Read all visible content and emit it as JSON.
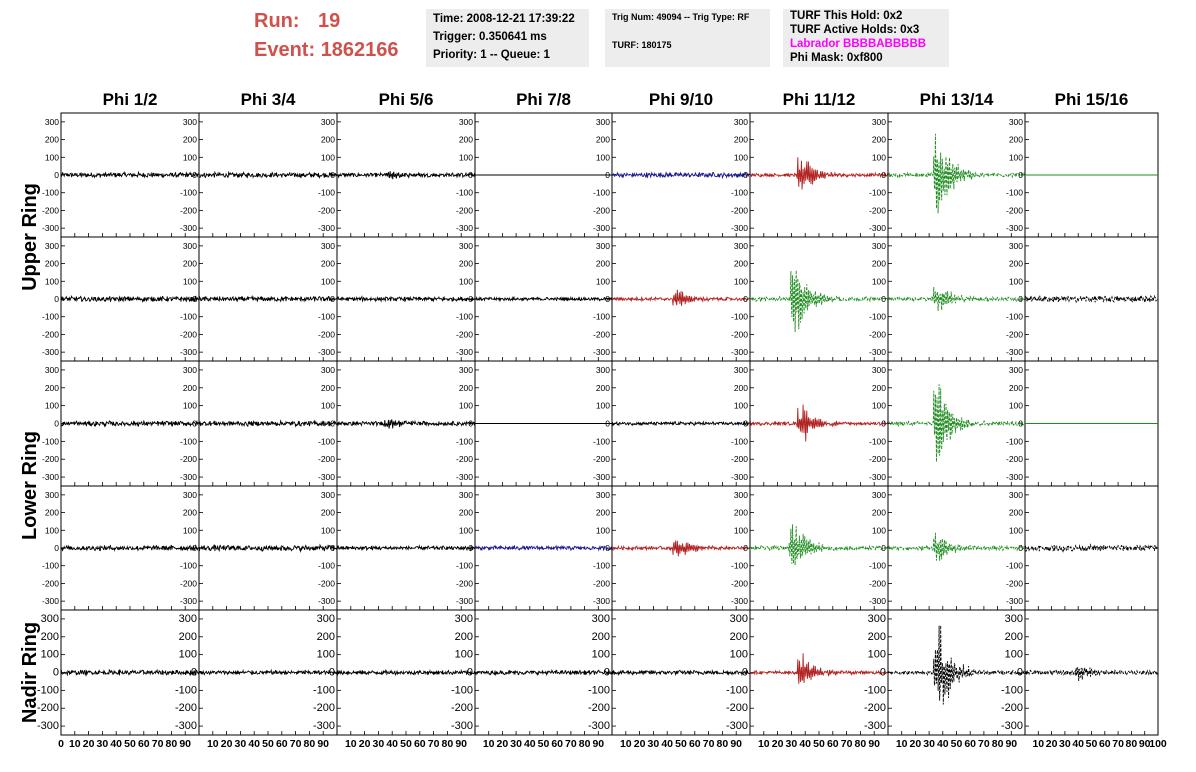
{
  "header": {
    "run_label": "Run:",
    "run_value": "19",
    "event_label": "Event:",
    "event_value": "1862166",
    "time_line": "Time: 2008-12-21 17:39:22",
    "trigger_line": "Trigger: 0.350641 ms",
    "priority_line": "Priority: 1 -- Queue: 1",
    "trig_line": "Trig Num: 49094 -- Trig Type: RF",
    "turf_line": "TURF: 180175",
    "turf_hold_line": "TURF This Hold: 0x2",
    "turf_active_line": "TURF Active Holds: 0x3",
    "labrador_line": "Labrador BBBBABBBBB",
    "phi_mask_line": "Phi Mask: 0xf800"
  },
  "colors": {
    "header_red": "#d0504c",
    "labrador_magenta": "#ff00ff",
    "info_box_bg": "#ededed",
    "trace_black": "#000000",
    "trace_blue": "#1a1a8c",
    "trace_red": "#b22222",
    "trace_green": "#1e8c1e"
  },
  "chart_data": {
    "type": "line",
    "columns": [
      "Phi 1/2",
      "Phi 3/4",
      "Phi 5/6",
      "Phi 7/8",
      "Phi 9/10",
      "Phi 11/12",
      "Phi 13/14",
      "Phi 15/16"
    ],
    "rows": [
      "Upper Ring",
      "Lower Ring",
      "Nadir Ring"
    ],
    "xlim": [
      0,
      100
    ],
    "ylim": [
      -350,
      350
    ],
    "x_ticks": [
      0,
      10,
      20,
      30,
      40,
      50,
      60,
      70,
      80,
      90,
      100
    ],
    "x_tick_labels": [
      "0",
      "10",
      "20",
      "30",
      "40",
      "50",
      "60",
      "70",
      "80",
      "90",
      "100"
    ],
    "y_ticks": [
      300,
      200,
      100,
      0,
      -100,
      -200,
      -300
    ],
    "y_tick_labels": [
      "300",
      "200",
      "100",
      "0",
      "-100",
      "-200",
      "-300"
    ],
    "panels": [
      [
        {
          "color": "black",
          "style": "solid",
          "amp": 12,
          "peak": 0
        },
        {
          "color": "black",
          "style": "solid",
          "amp": 12,
          "peak": 0
        },
        {
          "color": "black",
          "style": "solid",
          "amp": 10,
          "peak": 30,
          "peak_x": 38
        },
        {
          "color": "black",
          "style": "flat",
          "amp": 0,
          "peak": 0
        },
        {
          "color": "blue",
          "style": "solid",
          "amp": 12,
          "peak": 0
        },
        {
          "color": "red",
          "style": "solid",
          "amp": 8,
          "peak": 140,
          "peak_x": 38
        },
        {
          "color": "green",
          "style": "dashed",
          "amp": 10,
          "peak": 340,
          "peak_x": 37
        },
        {
          "color": "green",
          "style": "flat",
          "amp": 0,
          "peak": 0
        }
      ],
      [
        {
          "color": "black",
          "style": "solid",
          "amp": 12,
          "peak": 0
        },
        {
          "color": "black",
          "style": "solid",
          "amp": 12,
          "peak": 0
        },
        {
          "color": "black",
          "style": "solid",
          "amp": 10,
          "peak": 0
        },
        {
          "color": "black",
          "style": "solid",
          "amp": 8,
          "peak": 0
        },
        {
          "color": "red",
          "style": "solid",
          "amp": 8,
          "peak": 70,
          "peak_x": 48
        },
        {
          "color": "green",
          "style": "dashed",
          "amp": 10,
          "peak": 260,
          "peak_x": 33
        },
        {
          "color": "green",
          "style": "dashed",
          "amp": 10,
          "peak": 120,
          "peak_x": 37
        },
        {
          "color": "black",
          "style": "dashed",
          "amp": 15,
          "peak": 0
        }
      ],
      [
        {
          "color": "black",
          "style": "solid",
          "amp": 12,
          "peak": 0
        },
        {
          "color": "black",
          "style": "solid",
          "amp": 12,
          "peak": 0
        },
        {
          "color": "black",
          "style": "solid",
          "amp": 10,
          "peak": 40,
          "peak_x": 38
        },
        {
          "color": "black",
          "style": "flat",
          "amp": 0,
          "peak": 0
        },
        {
          "color": "black",
          "style": "solid",
          "amp": 8,
          "peak": 0
        },
        {
          "color": "red",
          "style": "solid",
          "amp": 8,
          "peak": 130,
          "peak_x": 38
        },
        {
          "color": "green",
          "style": "dashed",
          "amp": 10,
          "peak": 320,
          "peak_x": 37
        },
        {
          "color": "green",
          "style": "flat",
          "amp": 0,
          "peak": 0
        }
      ],
      [
        {
          "color": "black",
          "style": "solid",
          "amp": 12,
          "peak": 0
        },
        {
          "color": "black",
          "style": "solid",
          "amp": 14,
          "peak": 0
        },
        {
          "color": "black",
          "style": "solid",
          "amp": 10,
          "peak": 0
        },
        {
          "color": "blue",
          "style": "solid",
          "amp": 10,
          "peak": 0
        },
        {
          "color": "red",
          "style": "solid",
          "amp": 8,
          "peak": 80,
          "peak_x": 48
        },
        {
          "color": "green",
          "style": "dashed",
          "amp": 10,
          "peak": 200,
          "peak_x": 32
        },
        {
          "color": "green",
          "style": "dashed",
          "amp": 10,
          "peak": 110,
          "peak_x": 37
        },
        {
          "color": "black",
          "style": "dashed",
          "amp": 15,
          "peak": 0
        }
      ],
      [
        {
          "color": "black",
          "style": "solid",
          "amp": 12,
          "peak": 0
        },
        {
          "color": "black",
          "style": "solid",
          "amp": 10,
          "peak": 0
        },
        {
          "color": "black",
          "style": "solid",
          "amp": 10,
          "peak": 0
        },
        {
          "color": "black",
          "style": "solid",
          "amp": 10,
          "peak": 0
        },
        {
          "color": "black",
          "style": "solid",
          "amp": 10,
          "peak": 0
        },
        {
          "color": "red",
          "style": "solid",
          "amp": 8,
          "peak": 120,
          "peak_x": 38
        },
        {
          "color": "black",
          "style": "dashed",
          "amp": 10,
          "peak": 330,
          "peak_x": 37
        },
        {
          "color": "black",
          "style": "dashed",
          "amp": 12,
          "peak": 60,
          "peak_x": 42
        }
      ]
    ]
  }
}
